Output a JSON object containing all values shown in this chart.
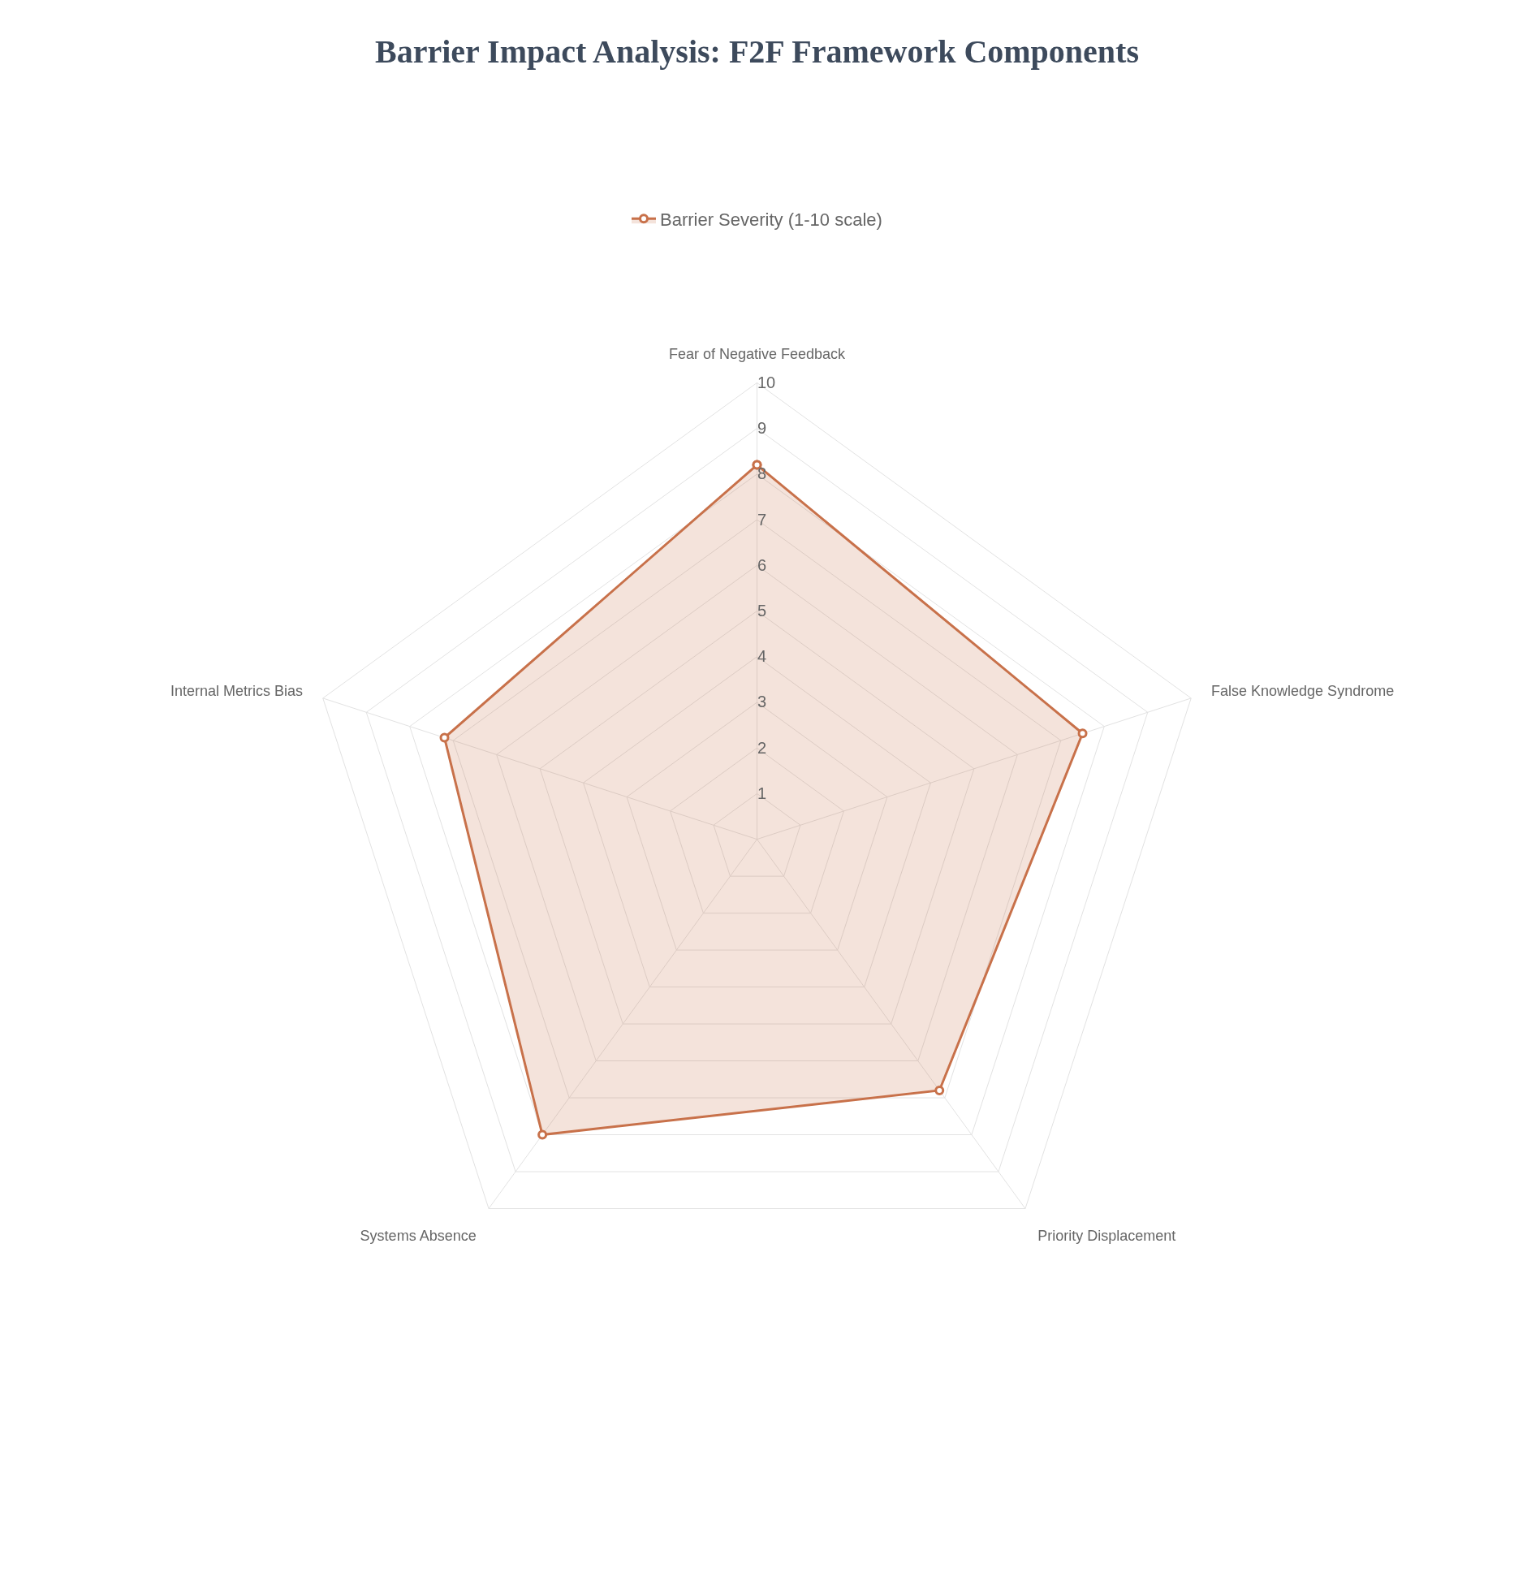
{
  "chart_data": {
    "type": "radar",
    "title": "Barrier Impact Analysis: F2F Framework Components",
    "categories": [
      "Fear of Negative Feedback",
      "False Knowledge Syndrome",
      "Priority Displacement",
      "Systems Absence",
      "Internal Metrics Bias"
    ],
    "series": [
      {
        "name": "Barrier Severity (1-10 scale)",
        "color": "#c8714a",
        "values": [
          8.2,
          7.5,
          6.8,
          8.0,
          7.2
        ]
      }
    ],
    "ylim": [
      0,
      10
    ],
    "yticks": [
      1,
      2,
      3,
      4,
      5,
      6,
      7,
      8,
      9,
      10
    ],
    "grid": true,
    "legend": "top",
    "marker": "circle",
    "line_style": "solid"
  }
}
